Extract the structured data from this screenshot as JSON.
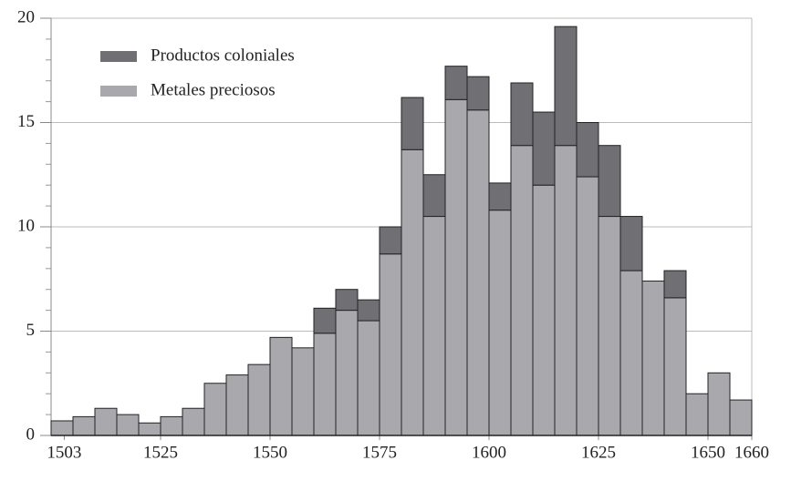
{
  "chart_data": {
    "type": "stacked_histogram",
    "bins": [
      1500,
      1505,
      1510,
      1515,
      1520,
      1525,
      1530,
      1535,
      1540,
      1545,
      1550,
      1555,
      1560,
      1565,
      1570,
      1575,
      1580,
      1585,
      1590,
      1595,
      1600,
      1605,
      1610,
      1615,
      1620,
      1625,
      1630,
      1635,
      1640,
      1645,
      1650,
      1655,
      1660
    ],
    "series": [
      {
        "name": "Metales preciosos",
        "color": "#a9a9ad",
        "values": [
          0.7,
          0.9,
          1.3,
          1.0,
          0.6,
          0.9,
          1.3,
          2.5,
          2.9,
          3.4,
          4.7,
          4.2,
          4.9,
          6.0,
          5.5,
          8.7,
          13.7,
          10.5,
          16.1,
          15.6,
          10.8,
          13.9,
          12.0,
          13.9,
          12.4,
          10.5,
          7.9,
          7.4,
          6.6,
          2.0,
          3.0,
          1.7
        ]
      },
      {
        "name": "Productos coloniales",
        "color": "#707074",
        "values": [
          0,
          0,
          0,
          0,
          0,
          0,
          0,
          0,
          0,
          0,
          0,
          0,
          1.2,
          1.0,
          1.0,
          1.3,
          2.5,
          2.0,
          1.6,
          1.6,
          1.3,
          3.0,
          3.5,
          5.7,
          2.6,
          3.4,
          2.6,
          0,
          1.3,
          0,
          0,
          0
        ]
      }
    ],
    "xlim": [
      1500,
      1660
    ],
    "xticks": [
      1503,
      1525,
      1550,
      1575,
      1600,
      1625,
      1650,
      1660
    ],
    "ylim": [
      0,
      20
    ],
    "yticks": [
      0,
      5,
      10,
      15,
      20
    ],
    "yminorticks": [
      1,
      2,
      3,
      4,
      6,
      7,
      8,
      9,
      11,
      12,
      13,
      14,
      16,
      17,
      18,
      19
    ],
    "grid": true,
    "legend": "upper left"
  }
}
